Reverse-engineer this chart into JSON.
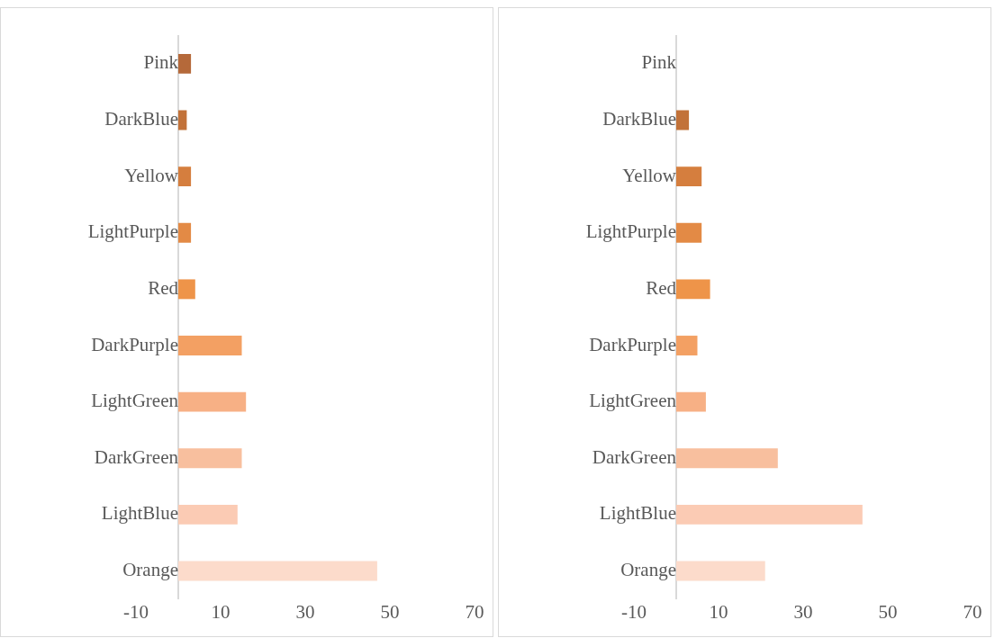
{
  "chart_data": [
    {
      "type": "bar",
      "orientation": "horizontal",
      "categories": [
        "Pink",
        "DarkBlue",
        "Yellow",
        "LightPurple",
        "Red",
        "DarkPurple",
        "LightGreen",
        "DarkGreen",
        "LightBlue",
        "Orange"
      ],
      "values": [
        3,
        2,
        3,
        3,
        4,
        15,
        16,
        15,
        14,
        47
      ],
      "colors": [
        "#b5693a",
        "#c27239",
        "#d57e3e",
        "#e38a45",
        "#ee9449",
        "#f3a063",
        "#f7b085",
        "#f8bf9e",
        "#fbcbb4",
        "#fcdbcb"
      ],
      "xlim": [
        -10,
        70
      ],
      "xticks": [
        -10,
        10,
        30,
        50,
        70
      ],
      "grid": false,
      "legend": false
    },
    {
      "type": "bar",
      "orientation": "horizontal",
      "categories": [
        "Pink",
        "DarkBlue",
        "Yellow",
        "LightPurple",
        "Red",
        "DarkPurple",
        "LightGreen",
        "DarkGreen",
        "LightBlue",
        "Orange"
      ],
      "values": [
        0,
        3,
        6,
        6,
        8,
        5,
        7,
        24,
        44,
        21
      ],
      "colors": [
        "#b5693a",
        "#c27239",
        "#d57e3e",
        "#e38a45",
        "#ee9449",
        "#f3a063",
        "#f7b085",
        "#f8bf9e",
        "#fbcbb4",
        "#fcdbcb"
      ],
      "xlim": [
        -10,
        70
      ],
      "xticks": [
        -10,
        10,
        30,
        50,
        70
      ],
      "grid": false,
      "legend": false
    }
  ]
}
